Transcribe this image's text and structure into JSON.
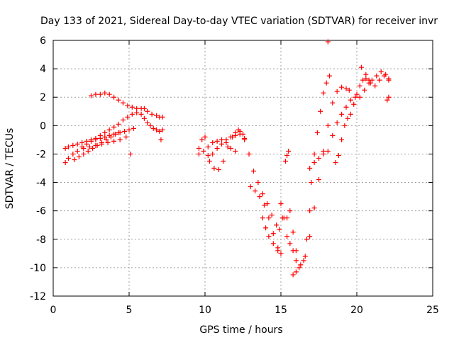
{
  "chart_data": {
    "type": "scatter",
    "title": "Day 133 of 2021, Sidereal Day-to-day VTEC variation (SDTVAR) for receiver invr",
    "xlabel": "GPS time / hours",
    "ylabel": "SDTVAR / TECUs",
    "xlim": [
      0,
      25
    ],
    "ylim": [
      -12,
      6
    ],
    "xticks": [
      0,
      5,
      10,
      15,
      20,
      25
    ],
    "xtick_labels": [
      "0",
      "5",
      "10",
      "15",
      "20",
      "25"
    ],
    "yticks": [
      -12,
      -10,
      -8,
      -6,
      -4,
      -2,
      0,
      2,
      4,
      6
    ],
    "ytick_labels": [
      "-12",
      "-10",
      "-8",
      "-6",
      "-4",
      "-2",
      "0",
      "2",
      "4",
      "6"
    ],
    "grid": true,
    "marker": "plus",
    "color": "#ff0000",
    "series": [
      {
        "points": [
          [
            0.8,
            -2.6
          ],
          [
            1.0,
            -2.3
          ],
          [
            1.3,
            -2.0
          ],
          [
            1.6,
            -1.8
          ],
          [
            1.9,
            -1.5
          ],
          [
            2.2,
            -1.3
          ],
          [
            2.5,
            -1.1
          ],
          [
            2.8,
            -0.9
          ],
          [
            3.1,
            -0.7
          ],
          [
            3.4,
            -0.5
          ],
          [
            3.7,
            -0.3
          ],
          [
            4.0,
            -0.1
          ],
          [
            4.3,
            0.1
          ],
          [
            4.6,
            0.4
          ],
          [
            4.9,
            0.6
          ],
          [
            5.2,
            0.8
          ],
          [
            5.5,
            0.9
          ],
          [
            5.8,
            0.8
          ],
          [
            6.0,
            0.5
          ],
          [
            6.2,
            0.2
          ],
          [
            6.4,
            0.0
          ],
          [
            6.6,
            -0.2
          ],
          [
            6.8,
            -0.3
          ],
          [
            7.0,
            -0.4
          ],
          [
            7.2,
            -0.3
          ],
          [
            0.8,
            -1.6
          ],
          [
            1.0,
            -1.5
          ],
          [
            1.3,
            -1.4
          ],
          [
            1.6,
            -1.3
          ],
          [
            1.9,
            -1.2
          ],
          [
            2.2,
            -1.1
          ],
          [
            2.5,
            -1.0
          ],
          [
            2.8,
            -1.0
          ],
          [
            3.1,
            -0.9
          ],
          [
            3.4,
            -0.8
          ],
          [
            3.7,
            -0.7
          ],
          [
            4.0,
            -0.6
          ],
          [
            4.3,
            -0.5
          ],
          [
            1.4,
            -2.4
          ],
          [
            1.7,
            -2.2
          ],
          [
            2.0,
            -2.0
          ],
          [
            2.3,
            -1.8
          ],
          [
            2.6,
            -1.6
          ],
          [
            2.9,
            -1.4
          ],
          [
            3.2,
            -1.2
          ],
          [
            3.5,
            -1.0
          ],
          [
            3.8,
            -0.8
          ],
          [
            4.1,
            -0.6
          ],
          [
            4.4,
            -0.5
          ],
          [
            4.7,
            -0.4
          ],
          [
            5.0,
            -0.3
          ],
          [
            5.3,
            -0.2
          ],
          [
            2.0,
            -1.6
          ],
          [
            2.4,
            -1.5
          ],
          [
            2.8,
            -1.4
          ],
          [
            3.2,
            -1.3
          ],
          [
            3.6,
            -1.2
          ],
          [
            4.0,
            -1.1
          ],
          [
            4.4,
            -1.0
          ],
          [
            4.8,
            -0.8
          ],
          [
            2.5,
            2.1
          ],
          [
            2.8,
            2.2
          ],
          [
            3.1,
            2.2
          ],
          [
            3.4,
            2.3
          ],
          [
            3.7,
            2.2
          ],
          [
            4.0,
            2.0
          ],
          [
            4.3,
            1.8
          ],
          [
            4.6,
            1.6
          ],
          [
            4.9,
            1.4
          ],
          [
            5.2,
            1.3
          ],
          [
            5.5,
            1.2
          ],
          [
            5.8,
            1.2
          ],
          [
            6.0,
            1.2
          ],
          [
            6.2,
            1.0
          ],
          [
            6.5,
            0.8
          ],
          [
            6.8,
            0.7
          ],
          [
            7.0,
            0.6
          ],
          [
            7.2,
            0.6
          ],
          [
            5.1,
            -2.0
          ],
          [
            7.1,
            -1.0
          ],
          [
            9.6,
            -2.0
          ],
          [
            9.8,
            -1.0
          ],
          [
            10.0,
            -0.8
          ],
          [
            10.2,
            -1.5
          ],
          [
            10.3,
            -2.5
          ],
          [
            10.6,
            -3.0
          ],
          [
            10.9,
            -3.1
          ],
          [
            11.2,
            -2.5
          ],
          [
            11.5,
            -1.5
          ],
          [
            11.8,
            -0.8
          ],
          [
            12.0,
            -0.5
          ],
          [
            12.3,
            -0.4
          ],
          [
            12.6,
            -0.9
          ],
          [
            12.9,
            -2.0
          ],
          [
            13.2,
            -3.2
          ],
          [
            13.5,
            -4.0
          ],
          [
            13.8,
            -4.8
          ],
          [
            14.1,
            -5.5
          ],
          [
            14.4,
            -6.3
          ],
          [
            14.7,
            -7.0
          ],
          [
            14.9,
            -7.3
          ],
          [
            15.1,
            -6.5
          ],
          [
            9.6,
            -1.6
          ],
          [
            9.9,
            -1.8
          ],
          [
            10.2,
            -2.1
          ],
          [
            10.5,
            -2.0
          ],
          [
            10.8,
            -1.6
          ],
          [
            11.1,
            -1.3
          ],
          [
            11.4,
            -1.0
          ],
          [
            11.7,
            -0.8
          ],
          [
            12.0,
            -0.7
          ],
          [
            12.3,
            -0.6
          ],
          [
            12.6,
            -1.0
          ],
          [
            10.5,
            -1.2
          ],
          [
            10.8,
            -1.1
          ],
          [
            11.1,
            -1.0
          ],
          [
            11.4,
            -1.2
          ],
          [
            11.7,
            -1.6
          ],
          [
            12.0,
            -1.8
          ],
          [
            12.2,
            -0.3
          ],
          [
            12.5,
            -0.6
          ],
          [
            13.0,
            -4.3
          ],
          [
            13.3,
            -4.6
          ],
          [
            13.6,
            -5.0
          ],
          [
            13.9,
            -5.6
          ],
          [
            14.2,
            -6.5
          ],
          [
            14.5,
            -7.6
          ],
          [
            14.8,
            -8.6
          ],
          [
            15.0,
            -9.0
          ],
          [
            13.8,
            -6.5
          ],
          [
            14.0,
            -7.2
          ],
          [
            14.2,
            -7.8
          ],
          [
            14.5,
            -8.3
          ],
          [
            14.8,
            -8.8
          ],
          [
            15.0,
            -5.5
          ],
          [
            15.2,
            -6.5
          ],
          [
            15.4,
            -7.8
          ],
          [
            15.6,
            -8.3
          ],
          [
            15.8,
            -8.8
          ],
          [
            16.0,
            -9.5
          ],
          [
            16.3,
            -9.8
          ],
          [
            16.6,
            -9.2
          ],
          [
            16.9,
            -7.8
          ],
          [
            17.2,
            -5.8
          ],
          [
            17.5,
            -3.8
          ],
          [
            17.8,
            -1.8
          ],
          [
            18.1,
            0.0
          ],
          [
            18.4,
            1.6
          ],
          [
            18.7,
            2.4
          ],
          [
            19.0,
            2.7
          ],
          [
            19.3,
            2.6
          ],
          [
            19.5,
            2.5
          ],
          [
            15.3,
            -2.5
          ],
          [
            15.4,
            -2.1
          ],
          [
            15.5,
            -1.8
          ],
          [
            15.4,
            -6.5
          ],
          [
            15.6,
            -6.0
          ],
          [
            15.8,
            -7.5
          ],
          [
            16.0,
            -8.8
          ],
          [
            15.8,
            -10.5
          ],
          [
            16.0,
            -10.3
          ],
          [
            16.2,
            -10.0
          ],
          [
            16.5,
            -9.5
          ],
          [
            16.7,
            -8.0
          ],
          [
            16.9,
            -6.0
          ],
          [
            17.0,
            -4.0
          ],
          [
            17.2,
            -2.0
          ],
          [
            17.4,
            -0.5
          ],
          [
            17.6,
            1.0
          ],
          [
            17.8,
            2.3
          ],
          [
            18.0,
            3.0
          ],
          [
            18.2,
            3.5
          ],
          [
            18.1,
            5.9
          ],
          [
            16.9,
            -3.0
          ],
          [
            17.2,
            -2.6
          ],
          [
            17.5,
            -2.3
          ],
          [
            17.8,
            -2.0
          ],
          [
            18.1,
            -1.8
          ],
          [
            18.6,
            -2.6
          ],
          [
            18.8,
            -2.1
          ],
          [
            19.0,
            -1.0
          ],
          [
            19.2,
            0.0
          ],
          [
            19.4,
            0.5
          ],
          [
            19.6,
            0.8
          ],
          [
            19.8,
            1.5
          ],
          [
            20.0,
            2.2
          ],
          [
            20.2,
            2.8
          ],
          [
            20.4,
            3.2
          ],
          [
            20.6,
            3.3
          ],
          [
            20.8,
            3.2
          ],
          [
            18.4,
            -0.7
          ],
          [
            18.7,
            0.2
          ],
          [
            19.0,
            0.8
          ],
          [
            19.3,
            1.3
          ],
          [
            19.6,
            1.8
          ],
          [
            19.9,
            2.0
          ],
          [
            20.2,
            2.0
          ],
          [
            20.5,
            2.5
          ],
          [
            20.8,
            3.0
          ],
          [
            21.0,
            3.2
          ],
          [
            21.3,
            3.5
          ],
          [
            21.6,
            3.8
          ],
          [
            21.9,
            3.6
          ],
          [
            22.1,
            3.3
          ],
          [
            20.3,
            4.1
          ],
          [
            20.6,
            3.6
          ],
          [
            20.9,
            3.0
          ],
          [
            21.2,
            2.8
          ],
          [
            21.5,
            3.2
          ],
          [
            21.8,
            3.5
          ],
          [
            22.1,
            3.2
          ],
          [
            22.0,
            1.8
          ],
          [
            22.1,
            2.0
          ]
        ]
      }
    ]
  }
}
